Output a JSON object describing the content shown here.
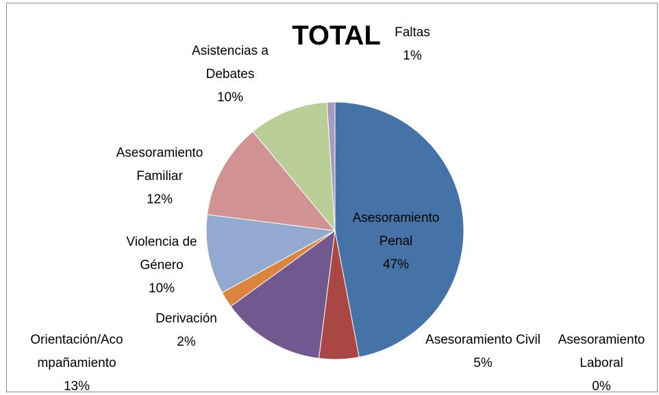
{
  "chart_data": {
    "type": "pie",
    "title": "TOTAL",
    "categories": [
      "Asesoramiento Penal",
      "Asesoramiento Civil",
      "Asesoramiento Laboral",
      "Orientación/Acompañamiento",
      "Derivación",
      "Violencia de Género",
      "Asesoramiento Familiar",
      "Asistencias a Debates",
      "Faltas"
    ],
    "values": [
      47,
      5,
      0,
      13,
      2,
      10,
      12,
      10,
      1
    ],
    "value_labels": [
      "47%",
      "5%",
      "0%",
      "13%",
      "2%",
      "10%",
      "12%",
      "10%",
      "1%"
    ],
    "colors": [
      "#4572a7",
      "#aa4643",
      "#89a54e",
      "#71588f",
      "#db843d",
      "#93a9cf",
      "#d19392",
      "#b9cd96",
      "#a99bbd"
    ]
  }
}
